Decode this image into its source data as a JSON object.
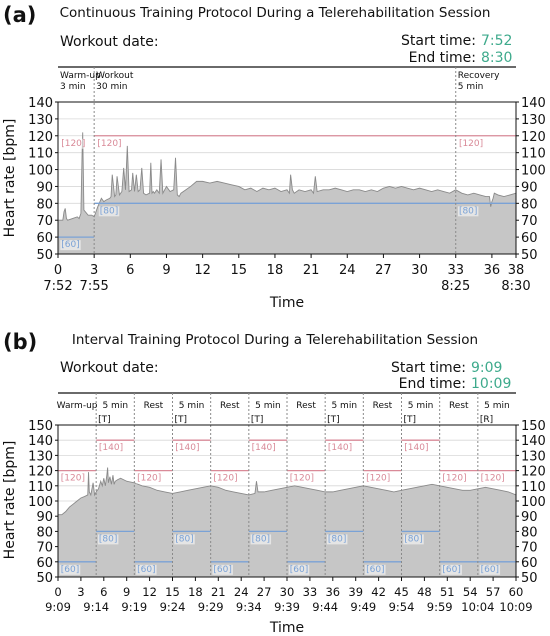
{
  "colors": {
    "accent": "#3eaa8c",
    "area": "#c6c6c6",
    "area_line": "#8a8a8a",
    "upper_line": "#d98a98",
    "lower_line": "#7aa2d6",
    "grid": "#d8d8d8",
    "phase_line": "#8a8a8a"
  },
  "chart_data": [
    {
      "type": "area",
      "panel_label": "(a)",
      "title": "Continuous Training Protocol During a Telerehabilitation Session",
      "header": {
        "workout_date_label": "Workout date:",
        "start_label": "Start time:",
        "start_value": "7:52",
        "end_label": "End time:",
        "end_value": "8:30"
      },
      "xlabel": "Time",
      "ylabel": "Heart rate [bpm]",
      "xlim": [
        0,
        38
      ],
      "ylim": [
        50,
        140
      ],
      "yticks": [
        50,
        60,
        70,
        80,
        90,
        100,
        110,
        120,
        130,
        140
      ],
      "xticks": [
        0,
        3,
        6,
        9,
        12,
        15,
        18,
        21,
        24,
        27,
        30,
        33,
        36,
        38
      ],
      "time_ticks": [
        {
          "x": 0,
          "label": "7:52"
        },
        {
          "x": 3,
          "label": "7:55"
        },
        {
          "x": 33,
          "label": "8:25"
        },
        {
          "x": 38,
          "label": "8:30"
        }
      ],
      "phases": [
        {
          "name": "Warm-up",
          "duration": "3 min",
          "start": 0
        },
        {
          "name": "Workout",
          "duration": "30 min",
          "start": 3
        },
        {
          "name": "Recovery",
          "duration": "5 min",
          "start": 33
        }
      ],
      "phase_boundaries": [
        3,
        33
      ],
      "target_segments": [
        {
          "x0": 0,
          "x1": 3,
          "upper": null,
          "lower": 60
        },
        {
          "x0": 3,
          "x1": 33,
          "upper": 120,
          "lower": 80
        },
        {
          "x0": 33,
          "x1": 38,
          "upper": 120,
          "lower": 80
        }
      ],
      "annotations": [
        {
          "text": "[120]",
          "x": 0.1,
          "y": 120,
          "kind": "upper"
        },
        {
          "text": "[120]",
          "x": 3.1,
          "y": 120,
          "kind": "upper"
        },
        {
          "text": "[120]",
          "x": 33.1,
          "y": 120,
          "kind": "upper"
        },
        {
          "text": "[80]",
          "x": 3.3,
          "y": 80,
          "kind": "lower"
        },
        {
          "text": "[80]",
          "x": 33.1,
          "y": 80,
          "kind": "lower"
        },
        {
          "text": "[60]",
          "x": 0.1,
          "y": 60,
          "kind": "lower"
        }
      ],
      "series": [
        {
          "x": [
            0,
            0.4,
            0.5,
            0.6,
            0.7,
            0.8,
            1.2,
            1.6,
            1.75,
            1.9,
            2.0,
            2.05,
            2.15,
            2.5,
            2.8,
            3.0,
            3.3,
            3.6,
            3.8,
            4.0,
            4.3,
            4.4,
            4.5,
            4.7,
            4.8,
            4.9,
            5.1,
            5.3,
            5.45,
            5.6,
            5.75,
            5.9,
            6.1,
            6.2,
            6.35,
            6.5,
            6.65,
            6.8,
            6.95,
            7.1,
            7.3,
            7.6,
            7.7,
            7.8,
            7.9,
            8.0,
            8.2,
            8.4,
            8.55,
            8.7,
            8.85,
            9.0,
            9.3,
            9.6,
            9.75,
            9.9,
            10.05,
            10.2,
            10.6,
            11.0,
            11.5,
            12.0,
            12.6,
            13.2,
            13.8,
            14.4,
            15.0,
            15.5,
            16.0,
            16.5,
            17.0,
            17.5,
            18.0,
            18.5,
            19.0,
            19.2,
            19.3,
            19.45,
            19.6,
            20.0,
            20.5,
            21.0,
            21.2,
            21.35,
            21.5,
            22.0,
            22.5,
            23.0,
            23.5,
            24.0,
            24.5,
            25.0,
            25.5,
            26.0,
            26.5,
            27.0,
            27.5,
            28.0,
            28.5,
            29.0,
            29.5,
            30.0,
            30.5,
            31.0,
            31.5,
            32.0,
            32.5,
            33.0,
            33.5,
            34.0,
            34.5,
            35.0,
            35.5,
            35.8,
            35.9,
            36.0,
            36.1,
            36.2,
            36.5,
            37.0,
            37.5,
            38.0
          ],
          "y": [
            70,
            70,
            75,
            77,
            71,
            70,
            71,
            72,
            71,
            74,
            110,
            122,
            76,
            73,
            73,
            72,
            78,
            83,
            81,
            82,
            83,
            84,
            97,
            84,
            85,
            96,
            85,
            87,
            101,
            88,
            114,
            87,
            88,
            98,
            87,
            97,
            87,
            88,
            101,
            86,
            85,
            86,
            104,
            86,
            87,
            86,
            88,
            86,
            106,
            86,
            88,
            90,
            87,
            88,
            107,
            85,
            84,
            86,
            88,
            90,
            93,
            93,
            92,
            93,
            92,
            91,
            90,
            88,
            89,
            87,
            89,
            88,
            89,
            87,
            88,
            86,
            97,
            88,
            86,
            88,
            87,
            88,
            86,
            96,
            87,
            88,
            88,
            89,
            88,
            87,
            88,
            88,
            87,
            88,
            87,
            89,
            90,
            89,
            90,
            89,
            88,
            89,
            88,
            87,
            88,
            87,
            86,
            88,
            86,
            85,
            86,
            85,
            84,
            84,
            78,
            81,
            83,
            86,
            85,
            84,
            85,
            86
          ]
        }
      ]
    },
    {
      "type": "area",
      "panel_label": "(b)",
      "title": "Interval Training Protocol During a Telerehabilitation Session",
      "header": {
        "workout_date_label": "Workout date:",
        "start_label": "Start time:",
        "start_value": "9:09",
        "end_label": "End time:",
        "end_value": "10:09"
      },
      "xlabel": "Time",
      "ylabel": "Heart rate [bpm]",
      "xlim": [
        0,
        60
      ],
      "ylim": [
        50,
        150
      ],
      "yticks": [
        50,
        60,
        70,
        80,
        90,
        100,
        110,
        120,
        130,
        140,
        150
      ],
      "xticks": [
        0,
        3,
        6,
        9,
        12,
        15,
        18,
        21,
        24,
        27,
        30,
        33,
        36,
        39,
        42,
        45,
        48,
        51,
        54,
        57,
        60
      ],
      "time_ticks": [
        {
          "x": 0,
          "label": "9:09"
        },
        {
          "x": 5,
          "label": "9:14"
        },
        {
          "x": 10,
          "label": "9:19"
        },
        {
          "x": 15,
          "label": "9:24"
        },
        {
          "x": 20,
          "label": "9:29"
        },
        {
          "x": 25,
          "label": "9:34"
        },
        {
          "x": 30,
          "label": "9:39"
        },
        {
          "x": 35,
          "label": "9:44"
        },
        {
          "x": 40,
          "label": "9:49"
        },
        {
          "x": 45,
          "label": "9:54"
        },
        {
          "x": 50,
          "label": "9:59"
        },
        {
          "x": 55,
          "label": "10:04"
        },
        {
          "x": 60,
          "label": "10:09"
        }
      ],
      "phases": [
        {
          "name": "Warm-up",
          "center": 2.5,
          "tag": ""
        },
        {
          "name": "5 min",
          "center": 7.5,
          "tag": "[T]"
        },
        {
          "name": "Rest",
          "center": 12.5,
          "tag": ""
        },
        {
          "name": "5 min",
          "center": 17.5,
          "tag": "[T]"
        },
        {
          "name": "Rest",
          "center": 22.5,
          "tag": ""
        },
        {
          "name": "5 min",
          "center": 27.5,
          "tag": "[T]"
        },
        {
          "name": "Rest",
          "center": 32.5,
          "tag": ""
        },
        {
          "name": "5 min",
          "center": 37.5,
          "tag": "[T]"
        },
        {
          "name": "Rest",
          "center": 42.5,
          "tag": ""
        },
        {
          "name": "5 min",
          "center": 47.5,
          "tag": "[T]"
        },
        {
          "name": "Rest",
          "center": 52.5,
          "tag": ""
        },
        {
          "name": "5 min",
          "center": 57.5,
          "tag": "[R]"
        }
      ],
      "phase_boundaries": [
        5,
        10,
        15,
        20,
        25,
        30,
        35,
        40,
        45,
        50,
        55
      ],
      "target_segments": [
        {
          "x0": 0,
          "x1": 5,
          "upper": 120,
          "lower": 60
        },
        {
          "x0": 5,
          "x1": 10,
          "upper": 140,
          "lower": 80
        },
        {
          "x0": 10,
          "x1": 15,
          "upper": 120,
          "lower": 60
        },
        {
          "x0": 15,
          "x1": 20,
          "upper": 140,
          "lower": 80
        },
        {
          "x0": 20,
          "x1": 25,
          "upper": 120,
          "lower": 60
        },
        {
          "x0": 25,
          "x1": 30,
          "upper": 140,
          "lower": 80
        },
        {
          "x0": 30,
          "x1": 35,
          "upper": 120,
          "lower": 60
        },
        {
          "x0": 35,
          "x1": 40,
          "upper": 140,
          "lower": 80
        },
        {
          "x0": 40,
          "x1": 45,
          "upper": 120,
          "lower": 60
        },
        {
          "x0": 45,
          "x1": 50,
          "upper": 140,
          "lower": 80
        },
        {
          "x0": 50,
          "x1": 55,
          "upper": 120,
          "lower": 60
        },
        {
          "x0": 55,
          "x1": 60,
          "upper": 120,
          "lower": 60
        }
      ],
      "annotations": [
        {
          "text": "[120]",
          "x": 0.1,
          "y": 120,
          "kind": "upper"
        },
        {
          "text": "[60]",
          "x": 0.1,
          "y": 60,
          "kind": "lower"
        },
        {
          "text": "[140]",
          "x": 5.1,
          "y": 140,
          "kind": "upper"
        },
        {
          "text": "[80]",
          "x": 5.1,
          "y": 80,
          "kind": "lower"
        },
        {
          "text": "[120]",
          "x": 10.1,
          "y": 120,
          "kind": "upper"
        },
        {
          "text": "[60]",
          "x": 10.1,
          "y": 60,
          "kind": "lower"
        },
        {
          "text": "[140]",
          "x": 15.1,
          "y": 140,
          "kind": "upper"
        },
        {
          "text": "[80]",
          "x": 15.1,
          "y": 80,
          "kind": "lower"
        },
        {
          "text": "[120]",
          "x": 20.1,
          "y": 120,
          "kind": "upper"
        },
        {
          "text": "[60]",
          "x": 20.1,
          "y": 60,
          "kind": "lower"
        },
        {
          "text": "[140]",
          "x": 25.1,
          "y": 140,
          "kind": "upper"
        },
        {
          "text": "[80]",
          "x": 25.1,
          "y": 80,
          "kind": "lower"
        },
        {
          "text": "[120]",
          "x": 30.1,
          "y": 120,
          "kind": "upper"
        },
        {
          "text": "[60]",
          "x": 30.1,
          "y": 60,
          "kind": "lower"
        },
        {
          "text": "[140]",
          "x": 35.1,
          "y": 140,
          "kind": "upper"
        },
        {
          "text": "[80]",
          "x": 35.1,
          "y": 80,
          "kind": "lower"
        },
        {
          "text": "[120]",
          "x": 40.1,
          "y": 120,
          "kind": "upper"
        },
        {
          "text": "[60]",
          "x": 40.1,
          "y": 60,
          "kind": "lower"
        },
        {
          "text": "[140]",
          "x": 45.1,
          "y": 140,
          "kind": "upper"
        },
        {
          "text": "[80]",
          "x": 45.1,
          "y": 80,
          "kind": "lower"
        },
        {
          "text": "[120]",
          "x": 50.1,
          "y": 120,
          "kind": "upper"
        },
        {
          "text": "[60]",
          "x": 50.1,
          "y": 60,
          "kind": "lower"
        },
        {
          "text": "[120]",
          "x": 55.1,
          "y": 120,
          "kind": "upper"
        },
        {
          "text": "[60]",
          "x": 55.1,
          "y": 60,
          "kind": "lower"
        }
      ],
      "series": [
        {
          "x": [
            0,
            0.5,
            1.0,
            1.5,
            2.0,
            2.5,
            3.0,
            3.5,
            3.9,
            4.0,
            4.1,
            4.3,
            4.6,
            4.8,
            5.0,
            5.3,
            5.6,
            5.8,
            6.0,
            6.2,
            6.4,
            6.5,
            6.6,
            6.8,
            7.0,
            7.2,
            7.35,
            7.5,
            7.8,
            8.2,
            8.6,
            9.0,
            10.0,
            11.0,
            12.0,
            13.0,
            14.0,
            15.0,
            16.0,
            17.0,
            18.0,
            19.0,
            20.0,
            21.0,
            22.0,
            23.0,
            24.0,
            25.0,
            25.8,
            26.0,
            26.2,
            27.0,
            28.0,
            29.0,
            30.0,
            31.0,
            32.0,
            33.0,
            34.0,
            35.0,
            36.0,
            37.0,
            38.0,
            39.0,
            40.0,
            41.0,
            42.0,
            43.0,
            44.0,
            45.0,
            46.0,
            47.0,
            48.0,
            49.0,
            50.0,
            51.0,
            52.0,
            53.0,
            54.0,
            55.0,
            56.0,
            57.0,
            58.0,
            59.0,
            60.0
          ],
          "y": [
            91,
            91,
            93,
            96,
            98,
            100,
            102,
            103,
            104,
            119,
            106,
            104,
            112,
            104,
            106,
            108,
            113,
            110,
            115,
            110,
            117,
            122,
            112,
            116,
            111,
            117,
            111,
            113,
            114,
            115,
            114,
            113,
            112,
            110,
            109,
            107,
            106,
            105,
            106,
            107,
            108,
            109,
            110,
            109,
            107,
            106,
            105,
            104,
            105,
            113,
            106,
            106,
            107,
            108,
            109,
            110,
            109,
            108,
            107,
            106,
            106,
            107,
            108,
            109,
            110,
            109,
            108,
            107,
            106,
            107,
            108,
            109,
            110,
            111,
            110,
            109,
            108,
            107,
            107,
            108,
            109,
            108,
            107,
            106,
            104
          ]
        }
      ]
    }
  ]
}
